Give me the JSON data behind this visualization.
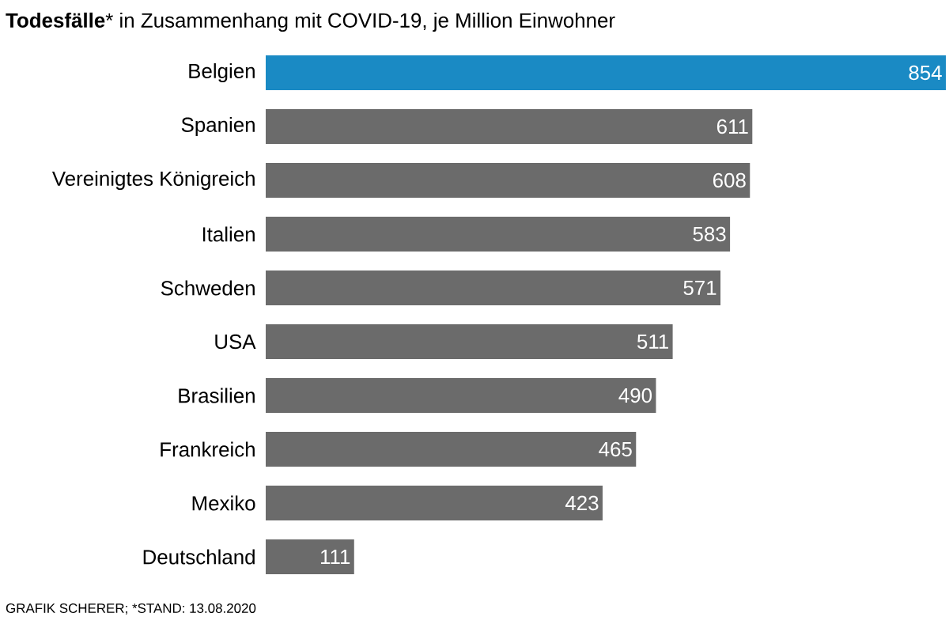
{
  "chart_data": {
    "type": "bar",
    "orientation": "horizontal",
    "title": "**Todesfälle*** in Zusammenhang mit COVID-19, je Million Einwohner",
    "categories": [
      "Belgien",
      "Spanien",
      "Vereinigtes Königreich",
      "Italien",
      "Schweden",
      "USA",
      "Brasilien",
      "Frankreich",
      "Mexiko",
      "Deutschland"
    ],
    "values": [
      854,
      611,
      608,
      583,
      571,
      511,
      490,
      465,
      423,
      111
    ],
    "colors": [
      "#1a8ac4",
      "#6b6b6b",
      "#6b6b6b",
      "#6b6b6b",
      "#6b6b6b",
      "#6b6b6b",
      "#6b6b6b",
      "#6b6b6b",
      "#6b6b6b",
      "#6b6b6b"
    ],
    "data_labels": true,
    "annotations": [
      "GRAFIK SCHERER; *STAND: 13.08.2020"
    ]
  }
}
